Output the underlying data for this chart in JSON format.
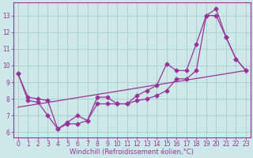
{
  "xlabel": "Windchill (Refroidissement éolien,°C)",
  "x_values": [
    0,
    1,
    2,
    3,
    4,
    5,
    6,
    7,
    8,
    9,
    10,
    11,
    12,
    13,
    14,
    15,
    16,
    17,
    18,
    19,
    20,
    21,
    22,
    23
  ],
  "main_line": [
    9.5,
    8.1,
    8.0,
    7.9,
    6.2,
    6.6,
    7.0,
    6.7,
    8.1,
    8.1,
    7.7,
    7.7,
    8.2,
    8.5,
    8.8,
    10.1,
    9.7,
    9.7,
    11.3,
    13.0,
    13.4,
    11.7,
    10.4,
    9.7
  ],
  "wc_line": [
    9.5,
    7.9,
    7.8,
    7.0,
    6.2,
    6.5,
    6.5,
    6.7,
    7.7,
    7.7,
    7.7,
    7.7,
    7.9,
    8.0,
    8.2,
    8.5,
    9.2,
    9.2,
    9.7,
    13.0,
    13.0,
    11.7,
    10.4,
    9.7
  ],
  "diag_line_x": [
    0,
    23
  ],
  "diag_line_y": [
    7.5,
    9.7
  ],
  "ylim": [
    5.7,
    13.8
  ],
  "xlim": [
    -0.5,
    23.5
  ],
  "bg_color": "#cce8e8",
  "grid_color": "#aacccc",
  "line_color": "#993399",
  "marker": "D",
  "markersize": 2.5,
  "linewidth": 0.9,
  "yticks": [
    6,
    7,
    8,
    9,
    10,
    11,
    12,
    13
  ],
  "xticks": [
    0,
    1,
    2,
    3,
    4,
    5,
    6,
    7,
    8,
    9,
    10,
    11,
    12,
    13,
    14,
    15,
    16,
    17,
    18,
    19,
    20,
    21,
    22,
    23
  ],
  "tick_fontsize": 5.5,
  "xlabel_fontsize": 6.0,
  "tick_color": "#993399",
  "axis_color": "#993399"
}
